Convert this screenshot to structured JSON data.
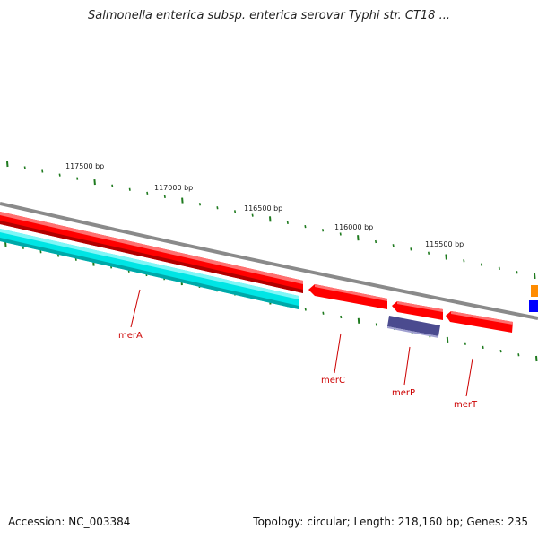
{
  "title": "Salmonella enterica subsp. enterica serovar Typhi str. CT18 ...",
  "footer": {
    "accession": "Accession: NC_003384",
    "summary": "Topology: circular; Length: 218,160 bp; Genes: 235"
  },
  "colors": {
    "backbone": "#8a8a8a",
    "feature_red": "#ff0000",
    "feature_cyan": "#00ffff",
    "feature_purple": "#4b4b8f",
    "feature_orange": "#ff8c00",
    "feature_blue": "#0000ff",
    "tick": "#1e7a1e",
    "gene_label": "#cc0000"
  },
  "scale_labels": [
    "117500 bp",
    "117000 bp",
    "116500 bp",
    "116000 bp",
    "115500 bp"
  ],
  "genes": [
    {
      "name": "merA"
    },
    {
      "name": "merC"
    },
    {
      "name": "merP"
    },
    {
      "name": "merT"
    }
  ]
}
